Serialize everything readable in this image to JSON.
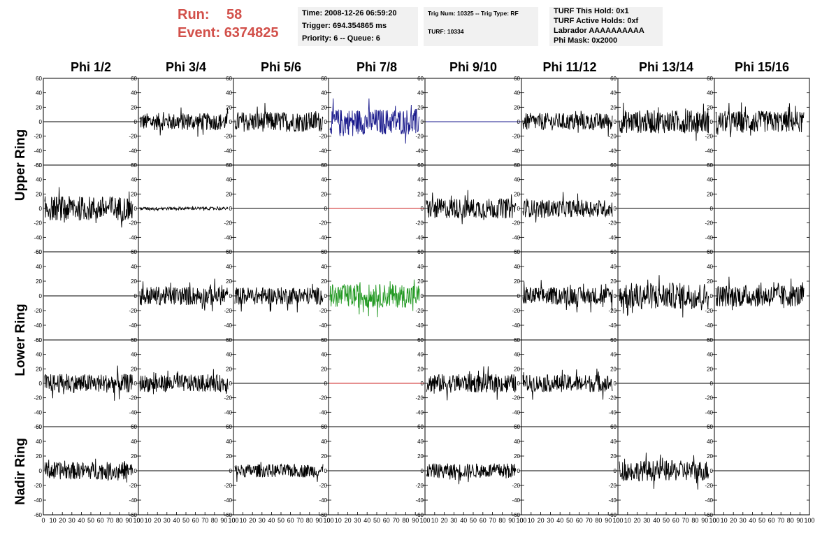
{
  "header": {
    "run_label": "Run:",
    "run_value": "58",
    "event_label": "Event:",
    "event_value": "6374825",
    "accent_color": "#d2504a"
  },
  "info_box_1": [
    "Time: 2008-12-26 06:59:20",
    "Trigger: 694.354865 ms",
    "Priority: 6 -- Queue: 6"
  ],
  "info_box_2": [
    "Trig Num: 10325 -- Trig Type: RF",
    "TURF: 10334"
  ],
  "info_box_3": [
    "TURF This Hold: 0x1",
    "TURF Active Holds: 0xf",
    "Labrador AAAAAAAAAA",
    "Phi Mask: 0x2000"
  ],
  "phi_headers": [
    "Phi 1/2",
    "Phi 3/4",
    "Phi 5/6",
    "Phi 7/8",
    "Phi 9/10",
    "Phi 11/12",
    "Phi 13/14",
    "Phi 15/16"
  ],
  "ring_labels": [
    "Upper Ring",
    "Lower Ring",
    "Nadir Ring"
  ],
  "chart_data": {
    "type": "line",
    "description_of_grid": "5 rows x 8 columns of waveform panels",
    "ylim": [
      -60,
      60
    ],
    "xlim": [
      0,
      100
    ],
    "y_ticks": [
      "60",
      "40",
      "20",
      "0",
      "-20",
      "-40",
      "-60"
    ],
    "x_ticks": [
      "0",
      "10",
      "20",
      "30",
      "40",
      "50",
      "60",
      "70",
      "80",
      "90",
      "100"
    ],
    "line_colors": {
      "default": "#000000",
      "blue": "#1a1a8c",
      "red": "#cc2222",
      "green": "#229922"
    },
    "panels": [
      [
        {
          "amp": 0,
          "color": "default"
        },
        {
          "amp": 12,
          "color": "default"
        },
        {
          "amp": 14,
          "color": "default"
        },
        {
          "amp": 18,
          "color": "blue"
        },
        {
          "amp": 0,
          "color": "blue"
        },
        {
          "amp": 12,
          "color": "default"
        },
        {
          "amp": 16,
          "color": "default"
        },
        {
          "amp": 15,
          "color": "default"
        }
      ],
      [
        {
          "amp": 17,
          "color": "default"
        },
        {
          "amp": 2,
          "color": "default"
        },
        {
          "amp": 0,
          "color": "default"
        },
        {
          "amp": 0,
          "color": "red"
        },
        {
          "amp": 14,
          "color": "default"
        },
        {
          "amp": 12,
          "color": "default"
        },
        {
          "amp": 0,
          "color": "default"
        },
        {
          "amp": 0,
          "color": "default"
        }
      ],
      [
        {
          "amp": 0,
          "color": "default"
        },
        {
          "amp": 13,
          "color": "default"
        },
        {
          "amp": 12,
          "color": "default"
        },
        {
          "amp": 16,
          "color": "green"
        },
        {
          "amp": 0,
          "color": "default"
        },
        {
          "amp": 12,
          "color": "default"
        },
        {
          "amp": 18,
          "color": "default"
        },
        {
          "amp": 15,
          "color": "default"
        }
      ],
      [
        {
          "amp": 13,
          "color": "default"
        },
        {
          "amp": 12,
          "color": "default"
        },
        {
          "amp": 0,
          "color": "default"
        },
        {
          "amp": 0,
          "color": "red"
        },
        {
          "amp": 13,
          "color": "default"
        },
        {
          "amp": 12,
          "color": "default"
        },
        {
          "amp": 0,
          "color": "default"
        },
        {
          "amp": 0,
          "color": "default"
        }
      ],
      [
        {
          "amp": 12,
          "color": "default"
        },
        {
          "amp": 0,
          "color": "default"
        },
        {
          "amp": 9,
          "color": "default"
        },
        {
          "amp": 0,
          "color": "default"
        },
        {
          "amp": 10,
          "color": "default"
        },
        {
          "amp": 0,
          "color": "default"
        },
        {
          "amp": 14,
          "color": "default"
        },
        {
          "amp": 0,
          "color": "default"
        }
      ]
    ]
  }
}
